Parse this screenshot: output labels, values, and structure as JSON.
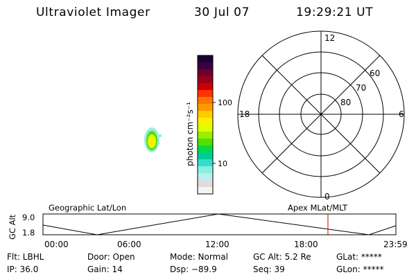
{
  "header": {
    "title": "Ultraviolet Imager",
    "date": "30 Jul 07",
    "time": "19:29:21 UT"
  },
  "colorbar": {
    "label": "photon cm⁻²s⁻¹",
    "ticks": [
      "100",
      "10"
    ],
    "colors": [
      "#1a0033",
      "#3a0040",
      "#6a0030",
      "#9a0018",
      "#cc0000",
      "#ff3300",
      "#ff7700",
      "#ff9900",
      "#ffcc00",
      "#ffee00",
      "#ddff00",
      "#99ee00",
      "#55dd00",
      "#00dd44",
      "#00cc99",
      "#33ddcc",
      "#88eedd",
      "#bbeeee",
      "#dddddd",
      "#f4f4f4"
    ]
  },
  "polar": {
    "labels": {
      "top": "12",
      "left": "18",
      "right": "6",
      "bottom": "0"
    },
    "lat_labels": [
      "60",
      "70",
      "80"
    ]
  },
  "timeline": {
    "ylabel": "GC Alt",
    "y_ticks": [
      "9.0",
      "1.8"
    ],
    "left_caption": "Geographic Lat/Lon",
    "right_caption": "Apex MLat/MLT",
    "x_ticks": [
      "00:00",
      "06:00",
      "12:00",
      "18:00",
      "23:59"
    ]
  },
  "status": {
    "row1": [
      "Flt: LBHL",
      "Door: Open",
      "Mode: Normal",
      "GC Alt: 5.2 Re",
      "GLat: *****"
    ],
    "row2": [
      "IP: 36.0",
      "Gain: 14",
      "Dsp: −89.9",
      "Seq: 39",
      "GLon: *****"
    ]
  },
  "colors": {
    "marker": "#cc0000",
    "background": "#ffffff",
    "line": "#000000"
  }
}
